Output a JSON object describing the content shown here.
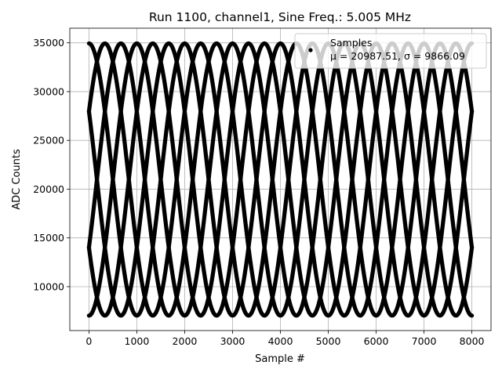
{
  "chart_data": {
    "type": "scatter",
    "title": "Run 1100, channel1, Sine Freq.: 5.005 MHz",
    "xlabel": "Sample #",
    "ylabel": "ADC Counts",
    "xlim": [
      -400,
      8400
    ],
    "ylim": [
      5500,
      36500
    ],
    "xticks": [
      0,
      1000,
      2000,
      3000,
      4000,
      5000,
      6000,
      7000,
      8000
    ],
    "yticks": [
      10000,
      15000,
      20000,
      25000,
      30000,
      35000
    ],
    "xtick_labels": [
      "0",
      "1000",
      "2000",
      "3000",
      "4000",
      "5000",
      "6000",
      "7000",
      "8000"
    ],
    "ytick_labels": [
      "10000",
      "15000",
      "20000",
      "25000",
      "30000",
      "35000"
    ],
    "grid": true,
    "legend": {
      "placement": "upper-right",
      "entries": [
        {
          "label": "Samples",
          "sublabel": "μ = 20987.51, σ = 9866.09"
        }
      ]
    },
    "series": [
      {
        "name": "Samples",
        "color": "#000000",
        "model": "sinusoid",
        "mean": 20987.51,
        "amplitude": 13950,
        "period_samples": 2000,
        "phases_at_x0_deg": [
          90,
          30,
          -30,
          -90,
          -150,
          150
        ],
        "x_range": [
          0,
          8000
        ]
      }
    ],
    "colors": {
      "points": "#000000",
      "grid": "#b0b0b0",
      "background": "#ffffff"
    }
  }
}
